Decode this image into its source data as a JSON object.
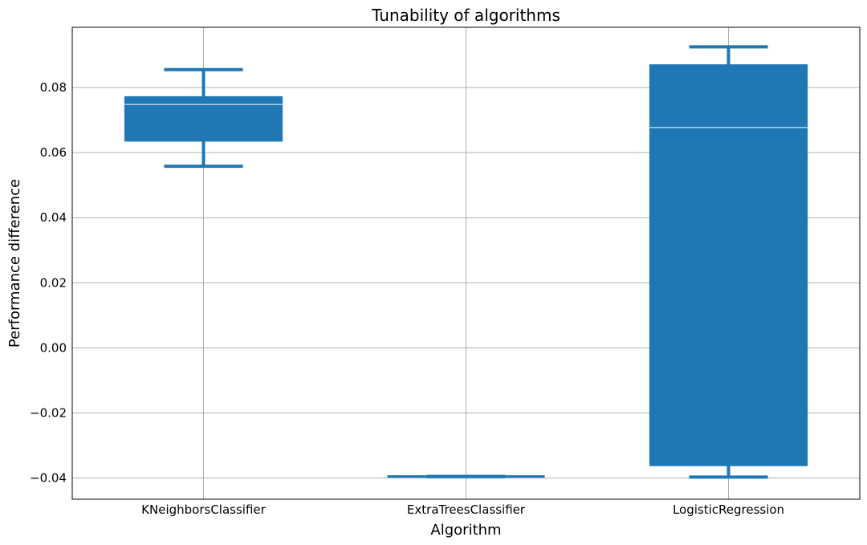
{
  "chart_data": {
    "type": "boxplot",
    "title": "Tunability of algorithms",
    "xlabel": "Algorithm",
    "ylabel": "Performance difference",
    "grid": true,
    "ylim": [
      -0.0465,
      0.0985
    ],
    "yticks": [
      -0.04,
      -0.02,
      0.0,
      0.02,
      0.04,
      0.06,
      0.08
    ],
    "ytick_labels": [
      "−0.04",
      "−0.02",
      "0.00",
      "0.02",
      "0.04",
      "0.06",
      "0.08"
    ],
    "categories": [
      "KNeighborsClassifier",
      "ExtraTreesClassifier",
      "LogisticRegression"
    ],
    "color": "#1f77b4",
    "boxes": [
      {
        "name": "KNeighborsClassifier",
        "whisker_low": 0.0558,
        "q1": 0.0635,
        "median": 0.0748,
        "q3": 0.0772,
        "whisker_high": 0.0855
      },
      {
        "name": "ExtraTreesClassifier",
        "whisker_low": -0.0395,
        "q1": -0.0395,
        "median": -0.0395,
        "q3": -0.0395,
        "whisker_high": -0.0395
      },
      {
        "name": "LogisticRegression",
        "whisker_low": -0.0397,
        "q1": -0.0362,
        "median": 0.0677,
        "q3": 0.087,
        "whisker_high": 0.0925
      }
    ]
  }
}
